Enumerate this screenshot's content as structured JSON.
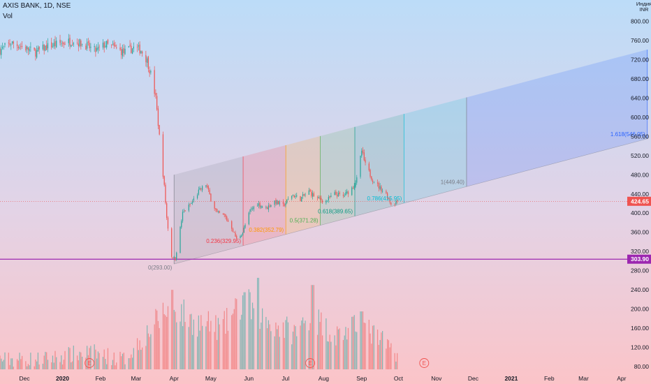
{
  "header": {
    "title": "AXIS BANK, 1D, NSE",
    "volume_label": "Vol"
  },
  "price_axis": {
    "currency_line1": "Индия",
    "currency_line2": "INR",
    "ticks": [
      800,
      760,
      720,
      680,
      640,
      600,
      560,
      520,
      480,
      440,
      400,
      360,
      320,
      280,
      240,
      200,
      160,
      120,
      80
    ],
    "tick_labels": [
      "800.00",
      "760.00",
      "720.00",
      "680.00",
      "640.00",
      "600.00",
      "560.00",
      "520.00",
      "480.00",
      "440.00",
      "400.00",
      "360.00",
      "320.00",
      "280.00",
      "240.00",
      "200.00",
      "160.00",
      "120.00",
      "80.00"
    ]
  },
  "price_badges": [
    {
      "name": "last-price-badge",
      "label": "424.65",
      "value": 424.65,
      "color": "#ef5350"
    },
    {
      "name": "horizontal-line-badge",
      "label": "303.90",
      "value": 303.9,
      "color": "#9c27b0"
    }
  ],
  "time_axis": {
    "labels": [
      "Dec",
      "2020",
      "Feb",
      "Mar",
      "Apr",
      "May",
      "Jun",
      "Jul",
      "Aug",
      "Sep",
      "Oct",
      "Nov",
      "Dec",
      "2021",
      "Feb",
      "Mar",
      "Apr"
    ],
    "dates": [
      "2019-12-01",
      "2020-01-01",
      "2020-02-01",
      "2020-03-01",
      "2020-04-01",
      "2020-05-01",
      "2020-06-01",
      "2020-07-01",
      "2020-08-01",
      "2020-09-01",
      "2020-10-01",
      "2020-11-01",
      "2020-12-01",
      "2021-01-01",
      "2021-02-01",
      "2021-03-01",
      "2021-04-01"
    ]
  },
  "earnings_markers": {
    "label": "E",
    "dates": [
      "2020-01-23",
      "2020-07-21",
      "2020-10-22"
    ]
  },
  "fib_channel": {
    "labels": [
      "0(293.00)",
      "0.236(329.95)",
      "0.382(352.79)",
      "0.5(371.28)",
      "0.618(389.65)",
      "0.786(415.95)",
      "1(449.40)",
      "1.618(546.05)"
    ],
    "levels": [
      0,
      0.236,
      0.382,
      0.5,
      0.618,
      0.786,
      1,
      1.618
    ],
    "prices": [
      293.0,
      329.95,
      352.79,
      371.28,
      389.65,
      415.95,
      449.4,
      546.05
    ],
    "colors": [
      "#787b86",
      "#f23645",
      "#ff9800",
      "#4caf50",
      "#089981",
      "#00bcd4",
      "#787b86",
      "#2962ff"
    ]
  },
  "chart_data": {
    "type": "candlestick",
    "title": "AXIS BANK, 1D, NSE",
    "x_range": [
      "2019-11-11",
      "2021-04-25"
    ],
    "price_range": [
      80,
      810
    ],
    "volume_panel_label": "Vol",
    "horizontal_line": 303.9,
    "last_price": 424.65,
    "price_path": [
      [
        "2019-11-11",
        740
      ],
      [
        "2019-11-20",
        755
      ],
      [
        "2019-12-01",
        745
      ],
      [
        "2019-12-10",
        735
      ],
      [
        "2019-12-20",
        748
      ],
      [
        "2020-01-01",
        755
      ],
      [
        "2020-01-10",
        760
      ],
      [
        "2020-01-20",
        750
      ],
      [
        "2020-01-28",
        738
      ],
      [
        "2020-02-05",
        752
      ],
      [
        "2020-02-12",
        745
      ],
      [
        "2020-02-20",
        735
      ],
      [
        "2020-02-28",
        745
      ],
      [
        "2020-03-05",
        740
      ],
      [
        "2020-03-10",
        718
      ],
      [
        "2020-03-13",
        690
      ],
      [
        "2020-03-17",
        640
      ],
      [
        "2020-03-20",
        560
      ],
      [
        "2020-03-24",
        455
      ],
      [
        "2020-03-26",
        390
      ],
      [
        "2020-03-30",
        310
      ],
      [
        "2020-04-02",
        305
      ],
      [
        "2020-04-08",
        400
      ],
      [
        "2020-04-15",
        420
      ],
      [
        "2020-04-21",
        445
      ],
      [
        "2020-04-27",
        460
      ],
      [
        "2020-05-01",
        430
      ],
      [
        "2020-05-06",
        400
      ],
      [
        "2020-05-12",
        395
      ],
      [
        "2020-05-18",
        370
      ],
      [
        "2020-05-22",
        345
      ],
      [
        "2020-05-27",
        360
      ],
      [
        "2020-06-02",
        405
      ],
      [
        "2020-06-08",
        420
      ],
      [
        "2020-06-15",
        410
      ],
      [
        "2020-06-22",
        425
      ],
      [
        "2020-06-29",
        415
      ],
      [
        "2020-07-06",
        438
      ],
      [
        "2020-07-13",
        430
      ],
      [
        "2020-07-20",
        445
      ],
      [
        "2020-07-27",
        430
      ],
      [
        "2020-08-03",
        425
      ],
      [
        "2020-08-10",
        440
      ],
      [
        "2020-08-17",
        435
      ],
      [
        "2020-08-24",
        452
      ],
      [
        "2020-08-28",
        470
      ],
      [
        "2020-09-01",
        530
      ],
      [
        "2020-09-04",
        500
      ],
      [
        "2020-09-10",
        470
      ],
      [
        "2020-09-15",
        455
      ],
      [
        "2020-09-21",
        440
      ],
      [
        "2020-09-25",
        420
      ],
      [
        "2020-09-30",
        424.65
      ]
    ],
    "volume_path": [
      [
        "2019-11-11",
        95
      ],
      [
        "2019-12-15",
        95
      ],
      [
        "2020-01-23",
        110
      ],
      [
        "2020-02-20",
        95
      ],
      [
        "2020-03-10",
        150
      ],
      [
        "2020-03-30",
        210
      ],
      [
        "2020-04-15",
        175
      ],
      [
        "2020-05-10",
        160
      ],
      [
        "2020-05-28",
        215
      ],
      [
        "2020-06-15",
        175
      ],
      [
        "2020-07-10",
        150
      ],
      [
        "2020-07-21",
        190
      ],
      [
        "2020-08-10",
        145
      ],
      [
        "2020-09-01",
        165
      ],
      [
        "2020-09-30",
        108
      ]
    ],
    "notable_volume_spikes": [
      [
        "2020-03-30",
        240
      ],
      [
        "2020-05-29",
        235
      ],
      [
        "2020-06-08",
        265
      ],
      [
        "2020-07-23",
        250
      ],
      [
        "2020-09-01",
        195
      ]
    ]
  }
}
